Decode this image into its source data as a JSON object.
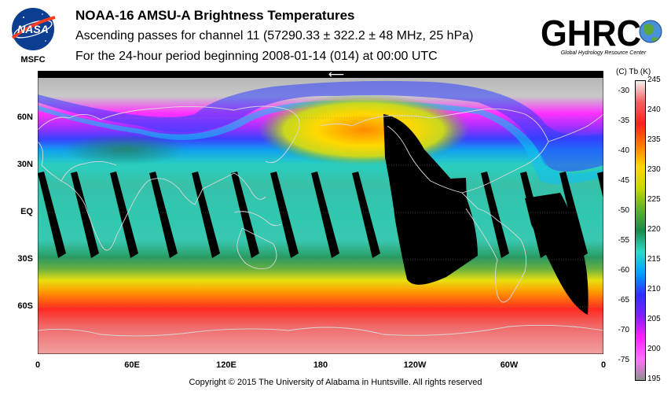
{
  "titles": {
    "line1": "NOAA-16 AMSU-A Brightness Temperatures",
    "line2": "Ascending passes for channel 11 (57290.33 ± 322.2 ± 48 MHz, 25 hPa)",
    "line3": "For the 24-hour period beginning 2008-01-14 (014) at 00:00 UTC"
  },
  "logos": {
    "nasa_text": "NASA",
    "msfc_text": "MSFC",
    "ghrc_text": "GHRC",
    "ghrc_subtitle": "Global Hydrology Resource Center"
  },
  "map": {
    "lat_labels": [
      "60N",
      "30N",
      "EQ",
      "30S",
      "60S"
    ],
    "lat_values": [
      60,
      30,
      0,
      -30,
      -60
    ],
    "lon_labels": [
      "0",
      "60E",
      "120E",
      "180",
      "120W",
      "60W",
      "0"
    ],
    "lon_values": [
      0,
      60,
      120,
      180,
      240,
      300,
      360
    ],
    "arrow_symbol": "⟵"
  },
  "colorbar": {
    "header": "(C)  Tb  (K)",
    "kelvin_labels": [
      "245",
      "240",
      "235",
      "230",
      "225",
      "220",
      "215",
      "210",
      "205",
      "200",
      "195"
    ],
    "kelvin_values": [
      245,
      240,
      235,
      230,
      225,
      220,
      215,
      210,
      205,
      200,
      195
    ],
    "celsius_labels": [
      "-30",
      "-35",
      "-40",
      "-45",
      "-50",
      "-55",
      "-60",
      "-65",
      "-70",
      "-75"
    ],
    "celsius_values": [
      -30,
      -35,
      -40,
      -45,
      -50,
      -55,
      -60,
      -65,
      -70,
      -75
    ],
    "colors": [
      "#f5f0f0",
      "#f06060",
      "#ff2020",
      "#ff7a00",
      "#ffd800",
      "#c8d800",
      "#60b030",
      "#1a8a4a",
      "#30d8c8",
      "#00a0ff",
      "#3030ff",
      "#8020ff",
      "#ff20ff",
      "#ff70ff",
      "#909090"
    ]
  },
  "copyright": "Copyright © 2015 The University of Alabama in Huntsville.  All rights reserved"
}
